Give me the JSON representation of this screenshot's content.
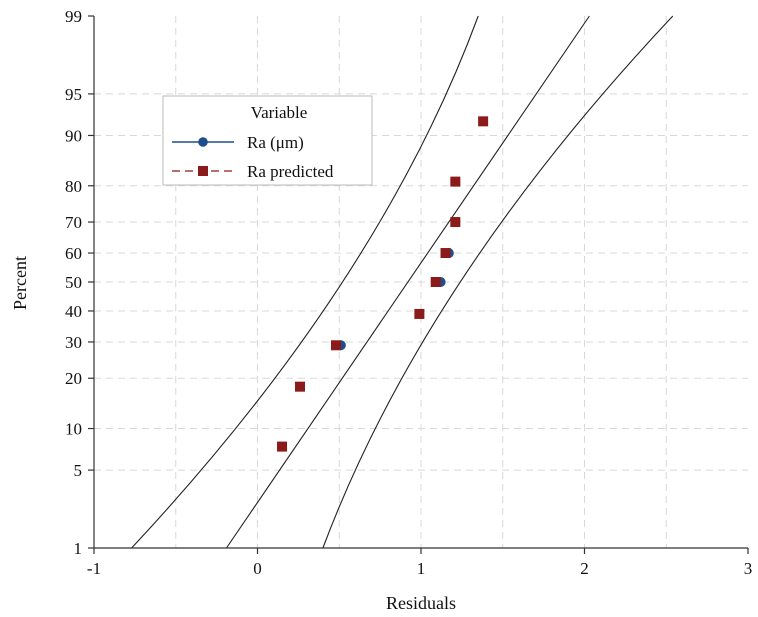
{
  "chart_data": {
    "type": "scatter",
    "title": "",
    "xlabel": "Residuals",
    "ylabel": "Percent",
    "xlim": [
      -1,
      3
    ],
    "ylim": [
      1,
      99
    ],
    "y_scale": "probability",
    "grid": true,
    "x_ticks": [
      -1,
      0,
      1,
      2,
      3
    ],
    "x_tick_labels": [
      "-1",
      "0",
      "1",
      "2",
      "3"
    ],
    "y_ticks": [
      1,
      5,
      10,
      20,
      30,
      40,
      50,
      60,
      70,
      80,
      90,
      95,
      99
    ],
    "y_tick_labels": [
      "1",
      "5",
      "10",
      "20",
      "30",
      "40",
      "50",
      "60",
      "70",
      "80",
      "90",
      "95",
      "99"
    ],
    "legend": {
      "title": "Variable",
      "position": "top-left"
    },
    "series": [
      {
        "name": "Ra (μm)",
        "marker": "circle",
        "line_style": "solid",
        "color": "#1f4e8c",
        "points": [
          {
            "x": 0.51,
            "y": 29
          },
          {
            "x": 1.12,
            "y": 50
          },
          {
            "x": 1.17,
            "y": 60
          }
        ]
      },
      {
        "name": "Ra predicted",
        "marker": "square",
        "line_style": "dashed",
        "color": "#8b1a1a",
        "points": [
          {
            "x": 0.15,
            "y": 7.5
          },
          {
            "x": 0.26,
            "y": 18
          },
          {
            "x": 0.48,
            "y": 29
          },
          {
            "x": 0.99,
            "y": 39
          },
          {
            "x": 1.09,
            "y": 50
          },
          {
            "x": 1.15,
            "y": 60
          },
          {
            "x": 1.21,
            "y": 70
          },
          {
            "x": 1.21,
            "y": 81
          },
          {
            "x": 1.38,
            "y": 92
          }
        ]
      }
    ],
    "fit_lines": [
      {
        "role": "lower-ci",
        "points": [
          {
            "x": -0.77,
            "y": 1
          },
          {
            "x": 0.52,
            "y": 50
          },
          {
            "x": 1.35,
            "y": 99
          }
        ]
      },
      {
        "role": "fit",
        "points": [
          {
            "x": -0.19,
            "y": 1
          },
          {
            "x": 0.92,
            "y": 50
          },
          {
            "x": 2.03,
            "y": 99
          }
        ]
      },
      {
        "role": "upper-ci",
        "points": [
          {
            "x": 0.4,
            "y": 1
          },
          {
            "x": 1.24,
            "y": 50
          },
          {
            "x": 2.54,
            "y": 99
          }
        ]
      }
    ]
  }
}
